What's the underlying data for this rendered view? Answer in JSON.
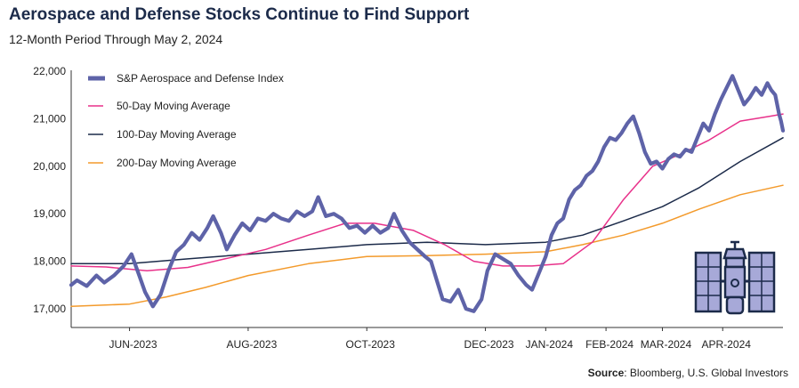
{
  "header": {
    "title": "Aerospace and Defense Stocks Continue to Find Support",
    "subtitle": "12-Month Period Through May 2, 2024"
  },
  "footer": {
    "source_label": "Source",
    "source_text": ": Bloomberg, U.S. Global Investors"
  },
  "colors": {
    "index": "#5e63a8",
    "ma50": "#e8318a",
    "ma100": "#1c2b4a",
    "ma200": "#f39a2b",
    "icon_fill": "#a7a9d8",
    "icon_stroke": "#1c2b4a"
  },
  "icon": "satellite-icon",
  "chart_data": {
    "type": "line",
    "ylim": [
      17000,
      22000
    ],
    "yticks": [
      17000,
      18000,
      19000,
      20000,
      21000,
      22000
    ],
    "ytick_labels": [
      "17,000",
      "18,000",
      "19,000",
      "20,000",
      "21,000",
      "22,000"
    ],
    "xlim": [
      "2023-05-02",
      "2024-05-02"
    ],
    "xticks": [
      {
        "date": "2023-06-01",
        "label": "JUN-2023"
      },
      {
        "date": "2023-08-01",
        "label": "AUG-2023"
      },
      {
        "date": "2023-10-01",
        "label": "OCT-2023"
      },
      {
        "date": "2023-12-01",
        "label": "DEC-2023"
      },
      {
        "date": "2024-01-01",
        "label": "JAN-2024"
      },
      {
        "date": "2024-02-01",
        "label": "FEB-2024"
      },
      {
        "date": "2024-03-01",
        "label": "MAR-2024"
      },
      {
        "date": "2024-04-01",
        "label": "APR-2024"
      }
    ],
    "legend": "top-left",
    "grid": false,
    "series": [
      {
        "name": "S&P Aerospace and Defense Index",
        "points": [
          [
            "2023-05-02",
            17500
          ],
          [
            "2023-05-05",
            17600
          ],
          [
            "2023-05-10",
            17480
          ],
          [
            "2023-05-15",
            17700
          ],
          [
            "2023-05-19",
            17550
          ],
          [
            "2023-05-24",
            17700
          ],
          [
            "2023-05-29",
            17900
          ],
          [
            "2023-06-02",
            18150
          ],
          [
            "2023-06-06",
            17700
          ],
          [
            "2023-06-09",
            17350
          ],
          [
            "2023-06-13",
            17050
          ],
          [
            "2023-06-17",
            17300
          ],
          [
            "2023-06-21",
            17800
          ],
          [
            "2023-06-25",
            18200
          ],
          [
            "2023-06-29",
            18350
          ],
          [
            "2023-07-03",
            18600
          ],
          [
            "2023-07-07",
            18450
          ],
          [
            "2023-07-11",
            18700
          ],
          [
            "2023-07-14",
            18950
          ],
          [
            "2023-07-18",
            18600
          ],
          [
            "2023-07-21",
            18250
          ],
          [
            "2023-07-25",
            18550
          ],
          [
            "2023-07-29",
            18800
          ],
          [
            "2023-08-02",
            18650
          ],
          [
            "2023-08-06",
            18900
          ],
          [
            "2023-08-10",
            18850
          ],
          [
            "2023-08-14",
            19000
          ],
          [
            "2023-08-18",
            18900
          ],
          [
            "2023-08-22",
            18850
          ],
          [
            "2023-08-26",
            19050
          ],
          [
            "2023-08-30",
            18950
          ],
          [
            "2023-09-03",
            19050
          ],
          [
            "2023-09-06",
            19350
          ],
          [
            "2023-09-10",
            18950
          ],
          [
            "2023-09-14",
            19000
          ],
          [
            "2023-09-18",
            18900
          ],
          [
            "2023-09-22",
            18700
          ],
          [
            "2023-09-26",
            18750
          ],
          [
            "2023-09-30",
            18600
          ],
          [
            "2023-10-04",
            18750
          ],
          [
            "2023-10-08",
            18600
          ],
          [
            "2023-10-12",
            18700
          ],
          [
            "2023-10-15",
            19000
          ],
          [
            "2023-10-19",
            18650
          ],
          [
            "2023-10-23",
            18400
          ],
          [
            "2023-10-27",
            18250
          ],
          [
            "2023-10-31",
            18100
          ],
          [
            "2023-11-03",
            18000
          ],
          [
            "2023-11-06",
            17600
          ],
          [
            "2023-11-09",
            17200
          ],
          [
            "2023-11-13",
            17150
          ],
          [
            "2023-11-17",
            17400
          ],
          [
            "2023-11-21",
            17000
          ],
          [
            "2023-11-25",
            16950
          ],
          [
            "2023-11-29",
            17200
          ],
          [
            "2023-12-02",
            17800
          ],
          [
            "2023-12-06",
            18150
          ],
          [
            "2023-12-10",
            18050
          ],
          [
            "2023-12-14",
            17950
          ],
          [
            "2023-12-18",
            17700
          ],
          [
            "2023-12-22",
            17500
          ],
          [
            "2023-12-25",
            17400
          ],
          [
            "2023-12-28",
            17700
          ],
          [
            "2024-01-01",
            18100
          ],
          [
            "2024-01-04",
            18550
          ],
          [
            "2024-01-07",
            18800
          ],
          [
            "2024-01-10",
            18900
          ],
          [
            "2024-01-13",
            19300
          ],
          [
            "2024-01-16",
            19500
          ],
          [
            "2024-01-19",
            19600
          ],
          [
            "2024-01-22",
            19800
          ],
          [
            "2024-01-25",
            19900
          ],
          [
            "2024-01-28",
            20100
          ],
          [
            "2024-01-31",
            20400
          ],
          [
            "2024-02-03",
            20600
          ],
          [
            "2024-02-06",
            20550
          ],
          [
            "2024-02-09",
            20700
          ],
          [
            "2024-02-12",
            20900
          ],
          [
            "2024-02-15",
            21050
          ],
          [
            "2024-02-18",
            20700
          ],
          [
            "2024-02-21",
            20300
          ],
          [
            "2024-02-24",
            20050
          ],
          [
            "2024-02-27",
            20100
          ],
          [
            "2024-03-01",
            19950
          ],
          [
            "2024-03-04",
            20150
          ],
          [
            "2024-03-07",
            20250
          ],
          [
            "2024-03-10",
            20200
          ],
          [
            "2024-03-13",
            20350
          ],
          [
            "2024-03-16",
            20300
          ],
          [
            "2024-03-19",
            20600
          ],
          [
            "2024-03-22",
            20900
          ],
          [
            "2024-03-25",
            20750
          ],
          [
            "2024-03-28",
            21100
          ],
          [
            "2024-03-31",
            21400
          ],
          [
            "2024-04-03",
            21650
          ],
          [
            "2024-04-06",
            21900
          ],
          [
            "2024-04-09",
            21600
          ],
          [
            "2024-04-12",
            21300
          ],
          [
            "2024-04-15",
            21450
          ],
          [
            "2024-04-18",
            21650
          ],
          [
            "2024-04-21",
            21500
          ],
          [
            "2024-04-24",
            21750
          ],
          [
            "2024-04-26",
            21600
          ],
          [
            "2024-04-28",
            21500
          ],
          [
            "2024-04-30",
            21100
          ],
          [
            "2024-05-01",
            20950
          ],
          [
            "2024-05-02",
            20750
          ]
        ]
      },
      {
        "name": "50-Day Moving Average",
        "points": [
          [
            "2023-05-02",
            17900
          ],
          [
            "2023-05-20",
            17880
          ],
          [
            "2023-06-10",
            17800
          ],
          [
            "2023-07-01",
            17870
          ],
          [
            "2023-07-20",
            18050
          ],
          [
            "2023-08-10",
            18250
          ],
          [
            "2023-09-01",
            18550
          ],
          [
            "2023-09-20",
            18800
          ],
          [
            "2023-10-05",
            18800
          ],
          [
            "2023-10-25",
            18650
          ],
          [
            "2023-11-10",
            18350
          ],
          [
            "2023-11-25",
            18000
          ],
          [
            "2023-12-10",
            17900
          ],
          [
            "2023-12-25",
            17900
          ],
          [
            "2024-01-10",
            17950
          ],
          [
            "2024-01-25",
            18400
          ],
          [
            "2024-02-10",
            19300
          ],
          [
            "2024-02-25",
            20000
          ],
          [
            "2024-03-10",
            20250
          ],
          [
            "2024-03-25",
            20550
          ],
          [
            "2024-04-10",
            20950
          ],
          [
            "2024-04-25",
            21050
          ],
          [
            "2024-05-02",
            21100
          ]
        ]
      },
      {
        "name": "100-Day Moving Average",
        "points": [
          [
            "2023-05-02",
            17950
          ],
          [
            "2023-06-01",
            17950
          ],
          [
            "2023-07-01",
            18050
          ],
          [
            "2023-08-01",
            18150
          ],
          [
            "2023-09-01",
            18250
          ],
          [
            "2023-10-01",
            18350
          ],
          [
            "2023-11-01",
            18400
          ],
          [
            "2023-12-01",
            18350
          ],
          [
            "2024-01-01",
            18400
          ],
          [
            "2024-01-20",
            18550
          ],
          [
            "2024-02-10",
            18850
          ],
          [
            "2024-03-01",
            19150
          ],
          [
            "2024-03-20",
            19550
          ],
          [
            "2024-04-10",
            20100
          ],
          [
            "2024-05-02",
            20600
          ]
        ]
      },
      {
        "name": "200-Day Moving Average",
        "points": [
          [
            "2023-05-02",
            17050
          ],
          [
            "2023-06-01",
            17100
          ],
          [
            "2023-06-20",
            17250
          ],
          [
            "2023-07-10",
            17450
          ],
          [
            "2023-08-01",
            17700
          ],
          [
            "2023-09-01",
            17950
          ],
          [
            "2023-10-01",
            18100
          ],
          [
            "2023-11-01",
            18120
          ],
          [
            "2023-12-01",
            18150
          ],
          [
            "2024-01-01",
            18200
          ],
          [
            "2024-01-20",
            18350
          ],
          [
            "2024-02-10",
            18550
          ],
          [
            "2024-03-01",
            18800
          ],
          [
            "2024-03-20",
            19100
          ],
          [
            "2024-04-10",
            19400
          ],
          [
            "2024-05-02",
            19600
          ]
        ]
      }
    ]
  }
}
